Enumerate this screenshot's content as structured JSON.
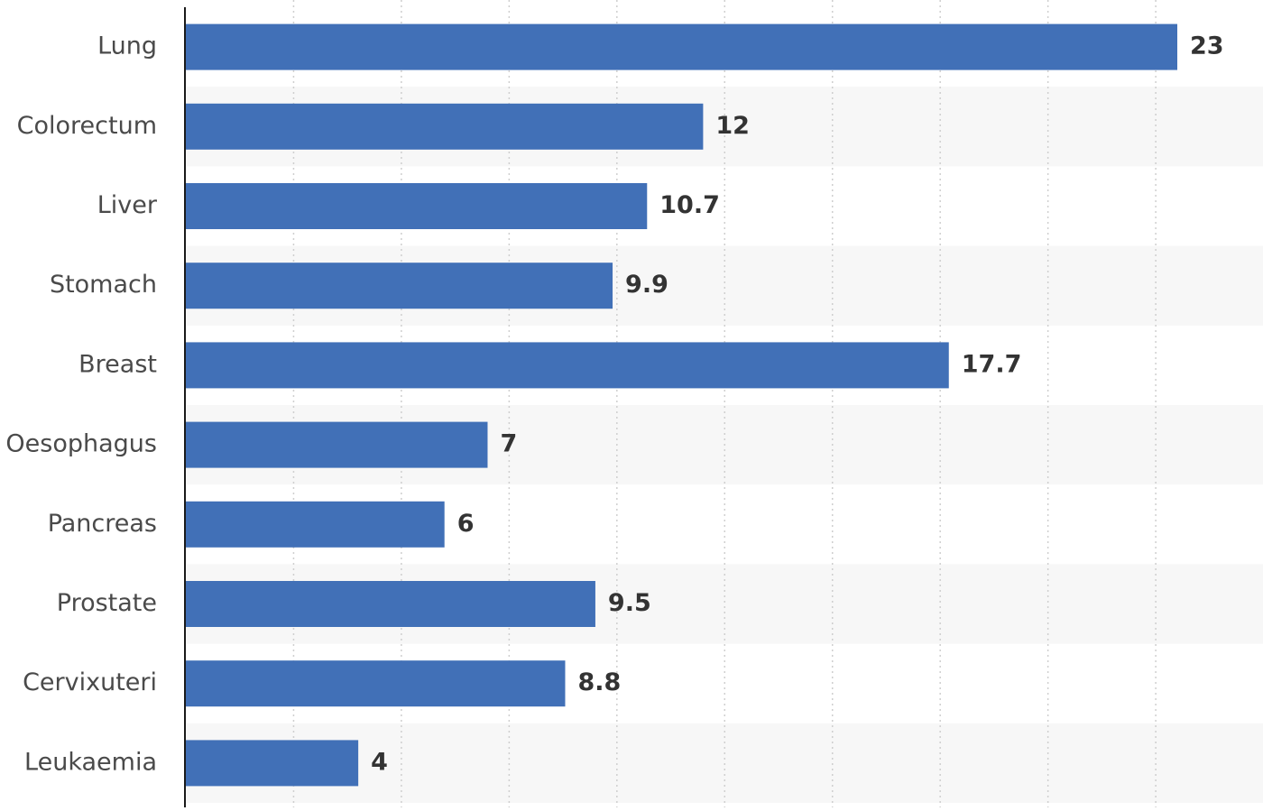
{
  "chart_data": {
    "type": "bar",
    "orientation": "horizontal",
    "title": "",
    "xlabel": "",
    "ylabel": "",
    "categories": [
      "Lung",
      "Colorectum",
      "Liver",
      "Stomach",
      "Breast",
      "Oesophagus",
      "Pancreas",
      "Prostate",
      "Cervixuteri",
      "Leukaemia"
    ],
    "values": [
      23,
      12,
      10.7,
      9.9,
      17.7,
      7,
      6,
      9.5,
      8.8,
      4
    ],
    "value_labels": [
      "23",
      "12",
      "10.7",
      "9.9",
      "17.7",
      "7",
      "6",
      "9.5",
      "8.8",
      "4"
    ],
    "xlim": [
      0,
      25
    ],
    "x_gridline_step": 2.5,
    "grid": true,
    "grid_style": "dotted vertical",
    "alternating_row_bands": true,
    "legend": "none",
    "colors": {
      "bar": "#4170b7",
      "axis": "#1a1a1a",
      "grid": "#cfcfcf",
      "band": "#f7f7f7",
      "category_text": "#4a4a4a",
      "value_text": "#333333"
    }
  }
}
